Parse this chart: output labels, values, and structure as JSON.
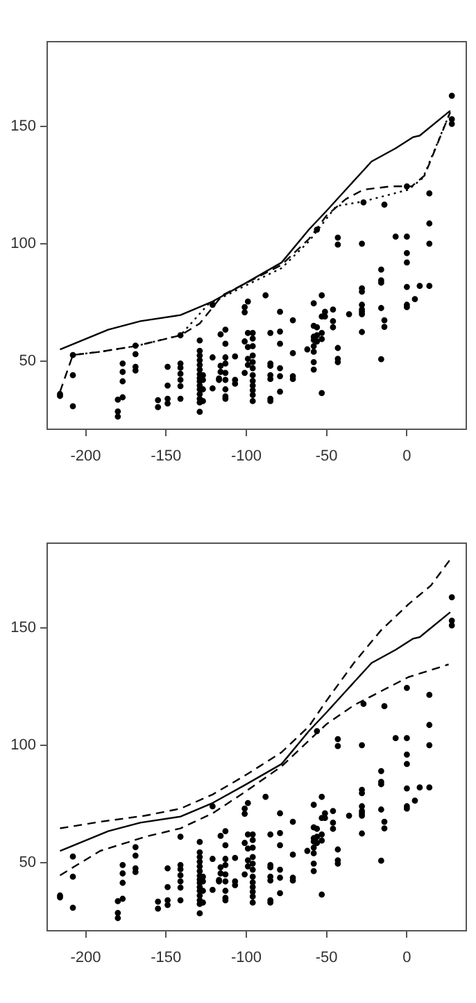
{
  "chart_data": [
    {
      "type": "scatter",
      "xlim": [
        -224,
        37
      ],
      "ylim": [
        21,
        186
      ],
      "xticks": [
        -200,
        -150,
        -100,
        -50,
        0
      ],
      "yticks": [
        50,
        100,
        150
      ],
      "grid": false,
      "legend": false,
      "series": [
        {
          "type": "scatter",
          "marker": "circle",
          "color": "#000000",
          "x": [
            -216,
            -216,
            -208,
            -208,
            -208,
            -180,
            -180,
            -180,
            -177,
            -177,
            -177,
            -177,
            -169,
            -169,
            -169,
            -169,
            -155,
            -155,
            -149,
            -149,
            -149,
            -149,
            -141,
            -141,
            -141,
            -141,
            -141,
            -141,
            -141,
            -129,
            -129,
            -129,
            -129,
            -129,
            -129,
            -129,
            -129,
            -129,
            -129,
            -129,
            -129,
            -129,
            -129,
            -129,
            -127,
            -127,
            -127,
            -127,
            -121,
            -121,
            -121,
            -117,
            -117,
            -116,
            -116,
            -116,
            -113,
            -113,
            -113,
            -113,
            -113,
            -113,
            -113,
            -113,
            -113,
            -107,
            -107,
            -107,
            -101,
            -101,
            -101,
            -101,
            -99,
            -99,
            -99,
            -99,
            -99,
            -96,
            -96,
            -96,
            -96,
            -96,
            -96,
            -96,
            -96,
            -96,
            -96,
            -96,
            -96,
            -88,
            -85,
            -85,
            -85,
            -85,
            -85,
            -85,
            -85,
            -79,
            -79,
            -79,
            -79,
            -79,
            -79,
            -71,
            -71,
            -71,
            -71,
            -62,
            -58,
            -58,
            -58,
            -58,
            -58,
            -58,
            -58,
            -58,
            -56,
            -56,
            -56,
            -56,
            -53,
            -53,
            -53,
            -53,
            -53,
            -51,
            -51,
            -46,
            -46,
            -46,
            -43,
            -43,
            -43,
            -43,
            -43,
            -36,
            -28,
            -28,
            -28,
            -28,
            -28,
            -28,
            -28,
            -28,
            -27,
            -16,
            -16,
            -16,
            -16,
            -16,
            -14,
            -14,
            -14,
            -7,
            0,
            0,
            0,
            0,
            0,
            0,
            0,
            5,
            8,
            14,
            14,
            14,
            14,
            28,
            28,
            28
          ],
          "values": [
            36,
            35.2,
            52.6,
            44,
            30.8,
            33.6,
            28.6,
            26.4,
            49,
            45.4,
            41.4,
            34.6,
            56.6,
            53,
            47.6,
            46,
            33.4,
            30.4,
            47.6,
            39.6,
            34,
            32,
            61,
            49,
            47.2,
            44.6,
            42,
            39.4,
            34,
            58.8,
            54.4,
            52.4,
            50.4,
            48.4,
            46.4,
            44.4,
            42.8,
            41.4,
            39.6,
            38,
            36,
            34,
            32.4,
            28.4,
            44,
            42,
            38,
            33,
            74,
            51.6,
            38.4,
            42.6,
            42,
            61.4,
            48,
            45.4,
            63.4,
            57.4,
            51.6,
            49,
            45,
            42,
            38,
            35,
            34,
            52,
            42,
            40.4,
            73,
            70.8,
            58.4,
            45,
            75.4,
            62,
            56,
            51,
            48.4,
            62,
            59.6,
            56.4,
            52.4,
            49.6,
            47,
            44,
            41.6,
            39.6,
            37.6,
            35.6,
            33,
            78,
            62,
            49,
            48,
            44,
            42.4,
            34,
            33,
            71,
            62.6,
            57.4,
            47,
            43.6,
            37,
            67.4,
            53.4,
            43.6,
            42.4,
            55,
            74.6,
            65,
            60.4,
            59,
            56.4,
            54,
            49.6,
            46.4,
            106,
            64.4,
            61,
            58.4,
            78,
            69,
            62,
            59.4,
            36.4,
            71,
            69,
            72,
            67,
            64.4,
            102.6,
            99.6,
            55.6,
            51,
            49.6,
            70,
            100,
            81,
            79.6,
            74,
            72,
            71,
            70,
            62.4,
            117.6,
            89,
            84.4,
            83.4,
            72.6,
            50.8,
            116.6,
            67.4,
            64.6,
            103,
            124.4,
            103,
            96,
            92,
            81.6,
            74,
            73,
            76.4,
            82,
            121.4,
            108.6,
            100,
            82,
            163,
            153,
            151
          ]
        },
        {
          "type": "line",
          "marker": "none",
          "line_style": "solid",
          "color": "#000000",
          "x": [
            -216,
            -186,
            -166,
            -141,
            -121,
            -101,
            -78,
            -61,
            -50,
            -38,
            -22,
            -7,
            4,
            8,
            27
          ],
          "values": [
            55,
            63.4,
            67,
            69.6,
            75.4,
            83,
            92,
            106,
            114,
            123,
            135,
            140.6,
            145.4,
            146,
            156.6
          ]
        },
        {
          "type": "line",
          "marker": "none",
          "line_style": "dashed",
          "color": "#000000",
          "x": [
            -216,
            -208,
            -191,
            -169,
            -141,
            -129,
            -115,
            -98,
            -78,
            -61,
            -50,
            -38,
            -27,
            -10,
            3,
            11,
            27
          ],
          "values": [
            37,
            52.6,
            54,
            56.4,
            61,
            66,
            78,
            84,
            91,
            102,
            112,
            119,
            123,
            124.4,
            124.4,
            129,
            156
          ]
        },
        {
          "type": "line",
          "marker": "none",
          "line_style": "dotted",
          "color": "#000000",
          "x": [
            -208,
            -191,
            -169,
            -141,
            -124,
            -101,
            -78,
            -61,
            -44,
            -27,
            1,
            10,
            27
          ],
          "values": [
            52.6,
            54,
            56.4,
            61,
            74,
            82,
            89.6,
            101,
            116,
            118,
            123,
            128,
            156
          ]
        }
      ]
    },
    {
      "type": "scatter",
      "xlim": [
        -224,
        37
      ],
      "ylim": [
        21,
        186
      ],
      "xticks": [
        -200,
        -150,
        -100,
        -50,
        0
      ],
      "yticks": [
        50,
        100,
        150
      ],
      "grid": false,
      "legend": false,
      "series": [
        {
          "type": "scatter",
          "marker": "circle",
          "color": "#000000",
          "x": [
            -216,
            -216,
            -208,
            -208,
            -208,
            -180,
            -180,
            -180,
            -177,
            -177,
            -177,
            -177,
            -169,
            -169,
            -169,
            -169,
            -155,
            -155,
            -149,
            -149,
            -149,
            -149,
            -141,
            -141,
            -141,
            -141,
            -141,
            -141,
            -141,
            -129,
            -129,
            -129,
            -129,
            -129,
            -129,
            -129,
            -129,
            -129,
            -129,
            -129,
            -129,
            -129,
            -129,
            -129,
            -127,
            -127,
            -127,
            -127,
            -121,
            -121,
            -121,
            -117,
            -117,
            -116,
            -116,
            -116,
            -113,
            -113,
            -113,
            -113,
            -113,
            -113,
            -113,
            -113,
            -113,
            -107,
            -107,
            -107,
            -101,
            -101,
            -101,
            -101,
            -99,
            -99,
            -99,
            -99,
            -99,
            -96,
            -96,
            -96,
            -96,
            -96,
            -96,
            -96,
            -96,
            -96,
            -96,
            -96,
            -96,
            -88,
            -85,
            -85,
            -85,
            -85,
            -85,
            -85,
            -85,
            -79,
            -79,
            -79,
            -79,
            -79,
            -79,
            -71,
            -71,
            -71,
            -71,
            -62,
            -58,
            -58,
            -58,
            -58,
            -58,
            -58,
            -58,
            -58,
            -56,
            -56,
            -56,
            -56,
            -53,
            -53,
            -53,
            -53,
            -53,
            -51,
            -51,
            -46,
            -46,
            -46,
            -43,
            -43,
            -43,
            -43,
            -43,
            -36,
            -28,
            -28,
            -28,
            -28,
            -28,
            -28,
            -28,
            -28,
            -27,
            -16,
            -16,
            -16,
            -16,
            -16,
            -14,
            -14,
            -14,
            -7,
            0,
            0,
            0,
            0,
            0,
            0,
            0,
            5,
            8,
            14,
            14,
            14,
            14,
            28,
            28,
            28
          ],
          "values": [
            36,
            35.2,
            52.6,
            44,
            30.8,
            33.6,
            28.6,
            26.4,
            49,
            45.4,
            41.4,
            34.6,
            56.6,
            53,
            47.6,
            46,
            33.4,
            30.4,
            47.6,
            39.6,
            34,
            32,
            61,
            49,
            47.2,
            44.6,
            42,
            39.4,
            34,
            58.8,
            54.4,
            52.4,
            50.4,
            48.4,
            46.4,
            44.4,
            42.8,
            41.4,
            39.6,
            38,
            36,
            34,
            32.4,
            28.4,
            44,
            42,
            38,
            33,
            74,
            51.6,
            38.4,
            42.6,
            42,
            61.4,
            48,
            45.4,
            63.4,
            57.4,
            51.6,
            49,
            45,
            42,
            38,
            35,
            34,
            52,
            42,
            40.4,
            73,
            70.8,
            58.4,
            45,
            75.4,
            62,
            56,
            51,
            48.4,
            62,
            59.6,
            56.4,
            52.4,
            49.6,
            47,
            44,
            41.6,
            39.6,
            37.6,
            35.6,
            33,
            78,
            62,
            49,
            48,
            44,
            42.4,
            34,
            33,
            71,
            62.6,
            57.4,
            47,
            43.6,
            37,
            67.4,
            53.4,
            43.6,
            42.4,
            55,
            74.6,
            65,
            60.4,
            59,
            56.4,
            54,
            49.6,
            46.4,
            106,
            64.4,
            61,
            58.4,
            78,
            69,
            62,
            59.4,
            36.4,
            71,
            69,
            72,
            67,
            64.4,
            102.6,
            99.6,
            55.6,
            51,
            49.6,
            70,
            100,
            81,
            79.6,
            74,
            72,
            71,
            70,
            62.4,
            117.6,
            89,
            84.4,
            83.4,
            72.6,
            50.8,
            116.6,
            67.4,
            64.6,
            103,
            124.4,
            103,
            96,
            92,
            81.6,
            74,
            73,
            76.4,
            82,
            121.4,
            108.6,
            100,
            82,
            163,
            153,
            151
          ]
        },
        {
          "type": "line",
          "marker": "none",
          "line_style": "solid",
          "color": "#000000",
          "x": [
            -216,
            -186,
            -166,
            -141,
            -121,
            -101,
            -78,
            -61,
            -50,
            -38,
            -22,
            -7,
            4,
            8,
            27
          ],
          "values": [
            55,
            63.4,
            67,
            69.6,
            75.4,
            83,
            92,
            106,
            114,
            123,
            135,
            140.6,
            145.4,
            146,
            156.6
          ]
        },
        {
          "type": "line",
          "marker": "none",
          "line_style": "dashed",
          "color": "#000000",
          "x": [
            -216,
            -191,
            -163,
            -141,
            -121,
            -101,
            -78,
            -61,
            -50,
            -33,
            -16,
            1,
            15,
            28
          ],
          "values": [
            64.6,
            67.4,
            70,
            73,
            79,
            87,
            97,
            108,
            119,
            135,
            149,
            160,
            168,
            180
          ]
        },
        {
          "type": "line",
          "marker": "none",
          "line_style": "dashed",
          "color": "#000000",
          "x": [
            -216,
            -191,
            -163,
            -141,
            -121,
            -101,
            -78,
            -61,
            -50,
            -33,
            -16,
            1,
            15,
            26
          ],
          "values": [
            44.6,
            55,
            61,
            64.6,
            71,
            80,
            91,
            102,
            109,
            117,
            123,
            129,
            132,
            134.4
          ]
        }
      ]
    }
  ]
}
